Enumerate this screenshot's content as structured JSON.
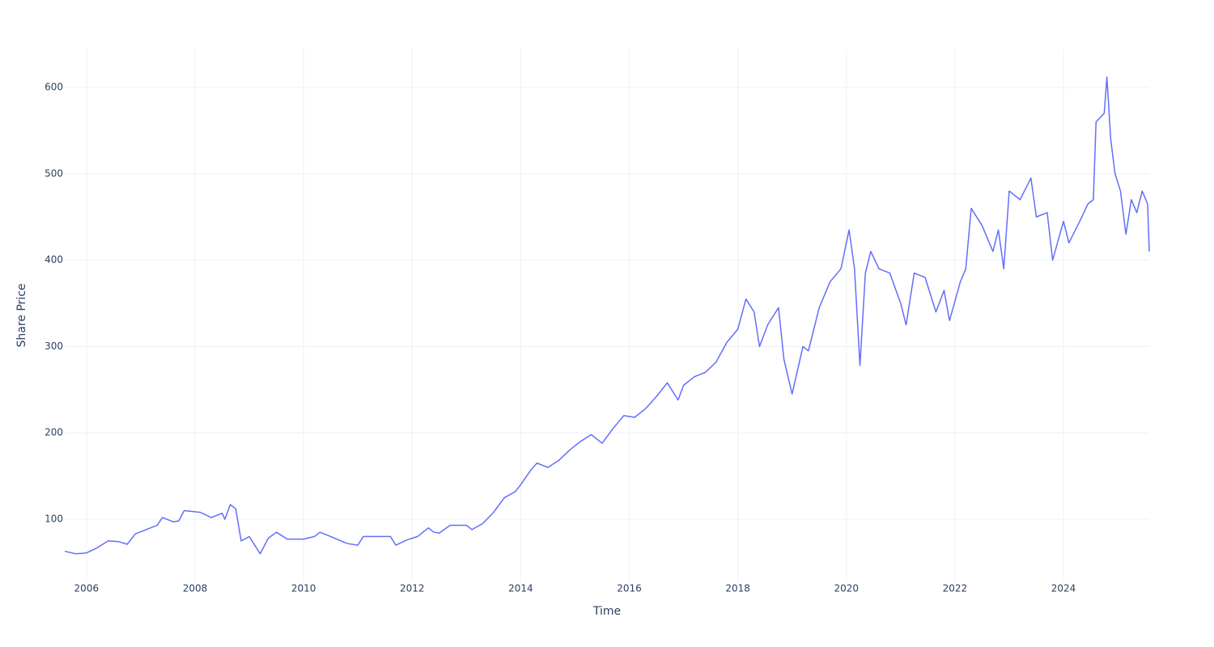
{
  "chart_data": {
    "type": "line",
    "x_label": "Time",
    "y_label": "Share Price",
    "xlim": [
      2005.6,
      2025.58
    ],
    "ylim": [
      27,
      645
    ],
    "xticks": [
      2006,
      2008,
      2010,
      2012,
      2014,
      2016,
      2018,
      2020,
      2022,
      2024
    ],
    "yticks": [
      100,
      200,
      300,
      400,
      500,
      600
    ],
    "grid": true,
    "series": [
      {
        "color": "#636efa",
        "x": [
          2005.6,
          2005.8,
          2006.0,
          2006.2,
          2006.4,
          2006.6,
          2006.75,
          2006.9,
          2007.1,
          2007.3,
          2007.4,
          2007.6,
          2007.7,
          2007.8,
          2008.1,
          2008.3,
          2008.5,
          2008.55,
          2008.65,
          2008.75,
          2008.85,
          2009.0,
          2009.1,
          2009.2,
          2009.35,
          2009.5,
          2009.7,
          2010.0,
          2010.2,
          2010.3,
          2010.5,
          2010.8,
          2011.0,
          2011.1,
          2011.4,
          2011.6,
          2011.7,
          2011.9,
          2012.1,
          2012.3,
          2012.4,
          2012.5,
          2012.7,
          2013.0,
          2013.1,
          2013.3,
          2013.5,
          2013.7,
          2013.9,
          2014.0,
          2014.2,
          2014.3,
          2014.5,
          2014.7,
          2014.9,
          2015.1,
          2015.3,
          2015.5,
          2015.7,
          2015.9,
          2016.1,
          2016.3,
          2016.5,
          2016.7,
          2016.9,
          2017.0,
          2017.2,
          2017.4,
          2017.6,
          2017.8,
          2018.0,
          2018.15,
          2018.3,
          2018.4,
          2018.55,
          2018.75,
          2018.85,
          2019.0,
          2019.2,
          2019.3,
          2019.5,
          2019.7,
          2019.9,
          2020.05,
          2020.15,
          2020.25,
          2020.35,
          2020.45,
          2020.6,
          2020.8,
          2021.0,
          2021.1,
          2021.25,
          2021.45,
          2021.65,
          2021.8,
          2021.9,
          2022.1,
          2022.2,
          2022.3,
          2022.5,
          2022.7,
          2022.8,
          2022.9,
          2023.0,
          2023.2,
          2023.4,
          2023.5,
          2023.7,
          2023.8,
          2024.0,
          2024.1,
          2024.3,
          2024.45,
          2024.55,
          2024.6,
          2024.75,
          2024.8,
          2024.87,
          2024.95,
          2025.05,
          2025.15,
          2025.25,
          2025.35,
          2025.45,
          2025.55,
          2025.58
        ],
        "values": [
          63,
          60,
          61,
          67,
          75,
          74,
          71,
          83,
          88,
          93,
          102,
          97,
          98,
          110,
          108,
          102,
          107,
          100,
          117,
          112,
          75,
          80,
          70,
          60,
          78,
          85,
          77,
          77,
          80,
          85,
          80,
          72,
          70,
          80,
          80,
          80,
          70,
          76,
          80,
          90,
          85,
          84,
          93,
          93,
          88,
          95,
          108,
          125,
          132,
          140,
          158,
          165,
          160,
          168,
          180,
          190,
          198,
          188,
          205,
          220,
          218,
          228,
          242,
          258,
          238,
          255,
          265,
          270,
          282,
          305,
          320,
          355,
          340,
          300,
          325,
          345,
          285,
          245,
          300,
          295,
          345,
          375,
          390,
          435,
          390,
          278,
          385,
          410,
          390,
          385,
          350,
          325,
          385,
          380,
          340,
          365,
          330,
          375,
          390,
          460,
          440,
          410,
          435,
          390,
          480,
          470,
          495,
          450,
          455,
          400,
          445,
          420,
          445,
          465,
          470,
          560,
          570,
          612,
          540,
          500,
          480,
          430,
          470,
          455,
          480,
          465,
          410
        ]
      }
    ]
  }
}
